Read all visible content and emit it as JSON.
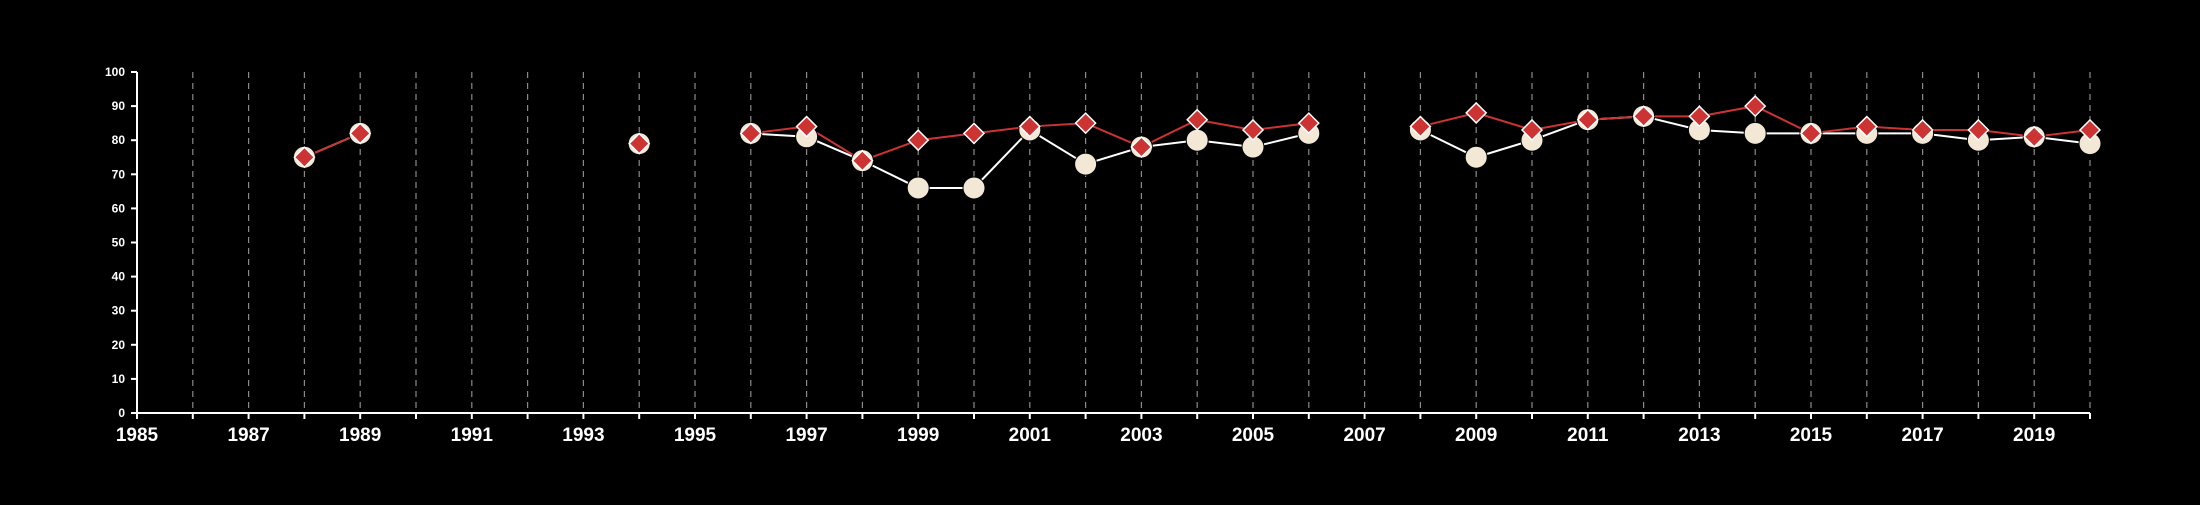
{
  "chart_data": {
    "type": "line",
    "title": "",
    "xlabel": "",
    "ylabel": "",
    "xlim": [
      1985,
      2020
    ],
    "ylim": [
      0,
      100
    ],
    "yticks": [
      0,
      10,
      20,
      30,
      40,
      50,
      60,
      70,
      80,
      90,
      100
    ],
    "xtick_labels": [
      "1985",
      "1987",
      "1989",
      "1991",
      "1993",
      "1995",
      "1997",
      "1999",
      "2001",
      "2003",
      "2005",
      "2007",
      "2009",
      "2011",
      "2013",
      "2015",
      "2017",
      "2019"
    ],
    "grid": "vertical dashed lines at each year",
    "legend": "none",
    "x": [
      1988,
      1989,
      1994,
      1996,
      1997,
      1998,
      1999,
      2000,
      2001,
      2002,
      2003,
      2004,
      2005,
      2006,
      2008,
      2009,
      2010,
      2011,
      2012,
      2013,
      2014,
      2015,
      2016,
      2017,
      2018,
      2019,
      2020
    ],
    "series": [
      {
        "marker": "circle",
        "line_color": "#ffffff",
        "marker_color": "#f3e8d6",
        "values": [
          75,
          82,
          79,
          82,
          81,
          74,
          66,
          66,
          83,
          73,
          78,
          80,
          78,
          82,
          83,
          75,
          80,
          86,
          87,
          83,
          82,
          82,
          82,
          82,
          80,
          81,
          79
        ]
      },
      {
        "marker": "diamond",
        "line_color": "#cc3333",
        "marker_color": "#cc3333",
        "values": [
          75,
          82,
          79,
          82,
          84,
          74,
          80,
          82,
          84,
          85,
          78,
          86,
          83,
          85,
          84,
          88,
          83,
          86,
          87,
          87,
          90,
          82,
          84,
          83,
          83,
          81,
          83
        ]
      }
    ]
  }
}
